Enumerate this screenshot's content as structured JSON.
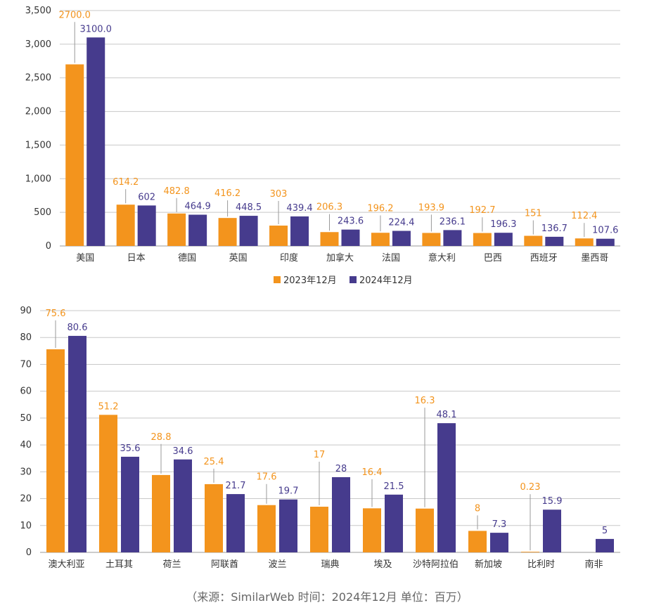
{
  "colors": {
    "series2023": "#f3941d",
    "series2024": "#463b8d",
    "grid": "#c8c8c8",
    "axis": "#999999",
    "leader": "#999999"
  },
  "chart_data": [
    {
      "type": "bar",
      "categories": [
        "美国",
        "日本",
        "德国",
        "英国",
        "印度",
        "加拿大",
        "法国",
        "意大利",
        "巴西",
        "西班牙",
        "墨西哥"
      ],
      "series": [
        {
          "name": "2023年12月",
          "values": [
            2700.0,
            614.2,
            482.8,
            416.2,
            303,
            206.3,
            196.2,
            193.9,
            192.7,
            151,
            112.4
          ],
          "labels": [
            "2700.0",
            "614.2",
            "482.8",
            "416.2",
            "303",
            "206.3",
            "196.2",
            "193.9",
            "192.7",
            "151",
            "112.4"
          ]
        },
        {
          "name": "2024年12月",
          "values": [
            3100.0,
            602,
            464.9,
            448.5,
            439.4,
            243.6,
            224.4,
            236.1,
            196.3,
            136.7,
            107.6
          ],
          "labels": [
            "3100.0",
            "602",
            "464.9",
            "448.5",
            "439.4",
            "243.6",
            "224.4",
            "236.1",
            "196.3",
            "136.7",
            "107.6"
          ]
        }
      ],
      "ylim": [
        0,
        3500
      ],
      "yticks": [
        "0",
        "500",
        "1,000",
        "1,500",
        "2,000",
        "2,500",
        "3,000",
        "3,500"
      ],
      "grid": true,
      "legend": {
        "position": "bottom",
        "entries": [
          "2023年12月",
          "2024年12月"
        ]
      }
    },
    {
      "type": "bar",
      "categories": [
        "澳大利亚",
        "土耳其",
        "荷兰",
        "阿联酋",
        "波兰",
        "瑞典",
        "埃及",
        "沙特阿拉伯",
        "新加坡",
        "比利时",
        "南非"
      ],
      "series": [
        {
          "name": "2023年12月",
          "values": [
            75.6,
            51.2,
            28.8,
            25.4,
            17.6,
            17,
            16.4,
            16.3,
            8,
            0.23,
            null
          ],
          "labels": [
            "75.6",
            "51.2",
            "28.8",
            "25.4",
            "17.6",
            "17",
            "16.4",
            "16.3",
            "8",
            "0.23",
            ""
          ]
        },
        {
          "name": "2024年12月",
          "values": [
            80.6,
            35.6,
            34.6,
            21.7,
            19.7,
            28,
            21.5,
            48.1,
            7.3,
            15.9,
            5
          ],
          "labels": [
            "80.6",
            "35.6",
            "34.6",
            "21.7",
            "19.7",
            "28",
            "21.5",
            "48.1",
            "7.3",
            "15.9",
            "5"
          ]
        }
      ],
      "ylim": [
        0,
        90
      ],
      "yticks": [
        "0",
        "10",
        "20",
        "30",
        "40",
        "50",
        "60",
        "70",
        "80",
        "90"
      ],
      "grid": true,
      "legend": null
    }
  ],
  "source_note": "（来源：SimilarWeb    时间：2024年12月    单位：百万）"
}
